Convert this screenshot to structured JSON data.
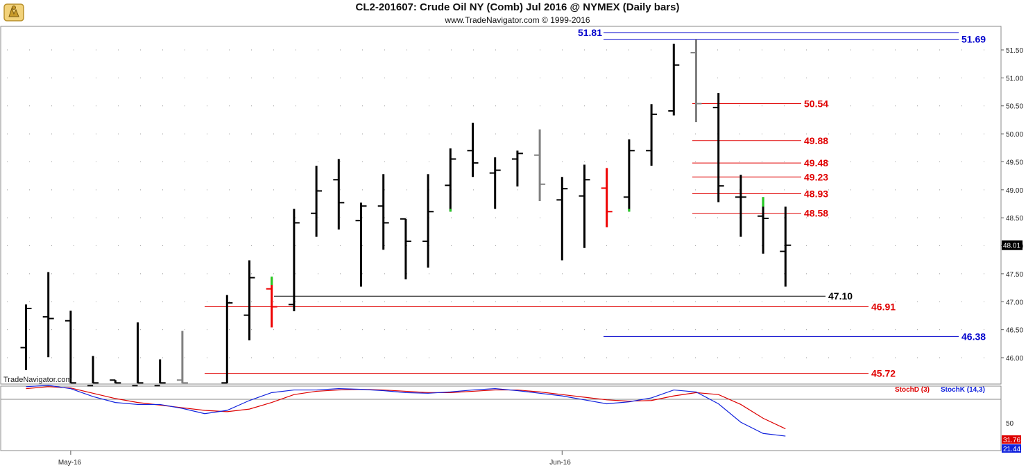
{
  "header": {
    "title": "CL2-201607:  Crude Oil NY (Comb) Jul 2016 @ NYMEX  (Daily bars)",
    "copyright": "www.TradeNavigator.com © 1999-2016"
  },
  "watermark": "TradeNavigator.com",
  "colors": {
    "up_bar": "#000000",
    "down_bar": "#000000",
    "gray_bar": "#808080",
    "red_level": "#e00000",
    "blue_level": "#0000cc",
    "black_level": "#000000",
    "stoch_d": "#dd0000",
    "stoch_k": "#1122dd",
    "green_tick": "#22cc22",
    "red_tick": "#ee0000"
  },
  "chart_data": [
    {
      "type": "ohlc",
      "yaxis_ticks": [
        "51.50",
        "51.00",
        "50.50",
        "50.00",
        "49.50",
        "49.00",
        "48.50",
        "48.00",
        "47.50",
        "47.00",
        "46.50",
        "46.00"
      ],
      "ylim": [
        45.55,
        51.95
      ],
      "last_price": "48.01",
      "x_labels": [
        {
          "label": "May-16",
          "index": 2
        },
        {
          "label": "Jun-16",
          "index": 24
        }
      ],
      "bars": [
        {
          "o": 46.18,
          "h": 46.95,
          "l": 45.78,
          "c": 46.88,
          "color": "black"
        },
        {
          "o": 46.73,
          "h": 47.53,
          "l": 46.01,
          "c": 46.7,
          "color": "black"
        },
        {
          "o": 46.66,
          "h": 46.84,
          "l": 45.5,
          "c": 45.55,
          "color": "black"
        },
        {
          "o": 45.5,
          "h": 46.03,
          "l": 45.4,
          "c": 45.55,
          "color": "black"
        },
        {
          "o": 45.6,
          "h": 45.6,
          "l": 45.4,
          "c": 45.55,
          "color": "black"
        },
        {
          "o": 45.5,
          "h": 46.63,
          "l": 45.4,
          "c": 45.55,
          "color": "black"
        },
        {
          "o": 45.5,
          "h": 45.97,
          "l": 45.4,
          "c": 45.55,
          "color": "black"
        },
        {
          "o": 45.6,
          "h": 46.48,
          "l": 45.4,
          "c": 45.55,
          "color": "gray"
        },
        {
          "o": 45.5,
          "h": 45.6,
          "l": 45.4,
          "c": 45.55,
          "color": "none"
        },
        {
          "o": 45.55,
          "h": 47.12,
          "l": 45.4,
          "c": 46.98,
          "color": "black"
        },
        {
          "o": 46.76,
          "h": 47.74,
          "l": 46.31,
          "c": 47.43,
          "color": "black"
        },
        {
          "o": 47.23,
          "h": 47.43,
          "l": 46.54,
          "c": 46.91,
          "color": "red"
        },
        {
          "o": 46.95,
          "h": 48.66,
          "l": 46.83,
          "c": 48.41,
          "color": "black"
        },
        {
          "o": 48.58,
          "h": 49.43,
          "l": 48.16,
          "c": 48.98,
          "color": "black"
        },
        {
          "o": 49.18,
          "h": 49.55,
          "l": 48.29,
          "c": 48.77,
          "color": "black"
        },
        {
          "o": 48.45,
          "h": 48.77,
          "l": 47.27,
          "c": 48.71,
          "color": "black"
        },
        {
          "o": 48.71,
          "h": 49.28,
          "l": 47.93,
          "c": 48.41,
          "color": "black"
        },
        {
          "o": 48.48,
          "h": 48.48,
          "l": 47.4,
          "c": 48.08,
          "color": "black"
        },
        {
          "o": 48.08,
          "h": 49.28,
          "l": 47.61,
          "c": 48.61,
          "color": "black"
        },
        {
          "o": 49.08,
          "h": 49.74,
          "l": 48.61,
          "c": 49.55,
          "color": "black"
        },
        {
          "o": 49.7,
          "h": 50.2,
          "l": 49.23,
          "c": 49.48,
          "color": "black"
        },
        {
          "o": 49.3,
          "h": 49.58,
          "l": 48.66,
          "c": 49.35,
          "color": "black"
        },
        {
          "o": 49.55,
          "h": 49.7,
          "l": 49.06,
          "c": 49.65,
          "color": "black"
        },
        {
          "o": 49.62,
          "h": 50.08,
          "l": 48.8,
          "c": 49.1,
          "color": "gray"
        },
        {
          "o": 48.82,
          "h": 49.23,
          "l": 47.74,
          "c": 49.02,
          "color": "black"
        },
        {
          "o": 48.89,
          "h": 49.45,
          "l": 47.96,
          "c": 49.18,
          "color": "black"
        },
        {
          "o": 49.03,
          "h": 49.39,
          "l": 48.33,
          "c": 48.61,
          "color": "red"
        },
        {
          "o": 48.87,
          "h": 49.9,
          "l": 48.61,
          "c": 49.7,
          "color": "black"
        },
        {
          "o": 49.7,
          "h": 50.53,
          "l": 49.43,
          "c": 50.35,
          "color": "black"
        },
        {
          "o": 50.41,
          "h": 51.61,
          "l": 50.33,
          "c": 51.23,
          "color": "black"
        },
        {
          "o": 51.45,
          "h": 51.69,
          "l": 50.21,
          "c": 50.54,
          "color": "gray"
        },
        {
          "o": 50.47,
          "h": 50.73,
          "l": 48.78,
          "c": 49.07,
          "color": "black"
        },
        {
          "o": 48.87,
          "h": 49.27,
          "l": 48.16,
          "c": 48.87,
          "color": "black"
        },
        {
          "o": 48.53,
          "h": 48.87,
          "l": 47.86,
          "c": 48.49,
          "color": "black"
        },
        {
          "o": 47.9,
          "h": 48.7,
          "l": 47.27,
          "c": 48.01,
          "color": "black"
        }
      ],
      "levels": [
        {
          "value": 51.81,
          "label": "51.81",
          "color": "blue",
          "label_side": "left"
        },
        {
          "value": 51.69,
          "label": "51.69",
          "color": "blue",
          "label_side": "right"
        },
        {
          "value": 50.54,
          "label": "50.54",
          "color": "red",
          "label_side": "right"
        },
        {
          "value": 49.88,
          "label": "49.88",
          "color": "red",
          "label_side": "right"
        },
        {
          "value": 49.48,
          "label": "49.48",
          "color": "red",
          "label_side": "right"
        },
        {
          "value": 49.23,
          "label": "49.23",
          "color": "red",
          "label_side": "right"
        },
        {
          "value": 48.93,
          "label": "48.93",
          "color": "red",
          "label_side": "right"
        },
        {
          "value": 48.58,
          "label": "48.58",
          "color": "red",
          "label_side": "right"
        },
        {
          "value": 47.1,
          "label": "47.10",
          "color": "black",
          "label_side": "right"
        },
        {
          "value": 46.91,
          "label": "46.91",
          "color": "red",
          "label_side": "right"
        },
        {
          "value": 46.38,
          "label": "46.38",
          "color": "blue",
          "label_side": "right"
        },
        {
          "value": 45.72,
          "label": "45.72",
          "color": "red",
          "label_side": "right"
        }
      ]
    },
    {
      "type": "line",
      "legend": [
        "StochD (3)",
        "StochK (14,3)"
      ],
      "ylim": [
        0,
        100
      ],
      "yaxis_ticks": [
        "50"
      ],
      "series": [
        {
          "name": "StochD (3)",
          "color": "red",
          "last_label": "31.76",
          "values": [
            93,
            96,
            94,
            86,
            78,
            72,
            68,
            64,
            60,
            58,
            62,
            72,
            84,
            89,
            91,
            92,
            91,
            89,
            87,
            87,
            89,
            91,
            91,
            88,
            84,
            80,
            76,
            74,
            75,
            82,
            87,
            84,
            69,
            48,
            32
          ]
        },
        {
          "name": "StochK (14,3)",
          "color": "blue",
          "last_label": "21.44",
          "values": [
            96,
            98,
            93,
            81,
            72,
            69,
            69,
            63,
            55,
            60,
            75,
            87,
            91,
            91,
            93,
            92,
            90,
            87,
            86,
            88,
            91,
            93,
            90,
            86,
            82,
            76,
            70,
            73,
            79,
            91,
            88,
            70,
            42,
            25,
            21
          ]
        }
      ]
    }
  ]
}
